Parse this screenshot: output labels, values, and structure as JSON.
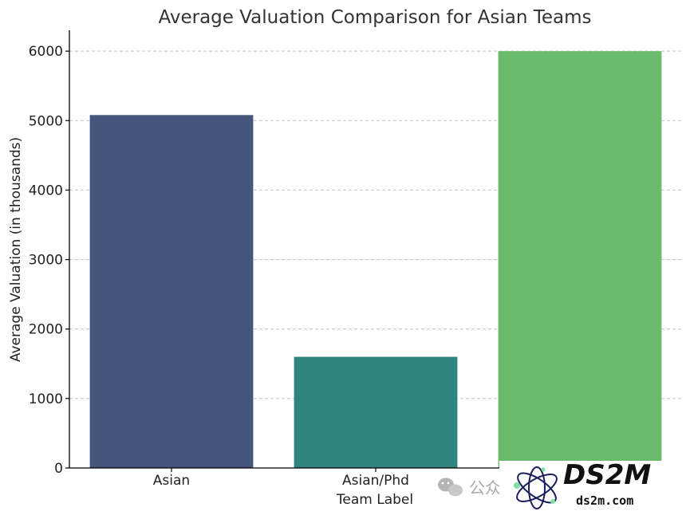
{
  "chart_data": {
    "type": "bar",
    "title": "Average Valuation Comparison for Asian Teams",
    "xlabel": "Team Label",
    "ylabel": "Average Valuation (in thousands)",
    "categories": [
      "Asian",
      "Asian/Phd",
      ""
    ],
    "values": [
      5080,
      1600,
      6000
    ],
    "colors": [
      "#46557c",
      "#2e857d",
      "#6bbb6d"
    ],
    "ylim": [
      0,
      6300
    ],
    "yticks": [
      0,
      1000,
      2000,
      3000,
      4000,
      5000,
      6000
    ],
    "grid": "horizontal dashed",
    "legend": "none"
  },
  "watermark": {
    "wechat_text": "公众",
    "brand_logo_text": "DS2M",
    "brand_url": "ds2m.com"
  }
}
